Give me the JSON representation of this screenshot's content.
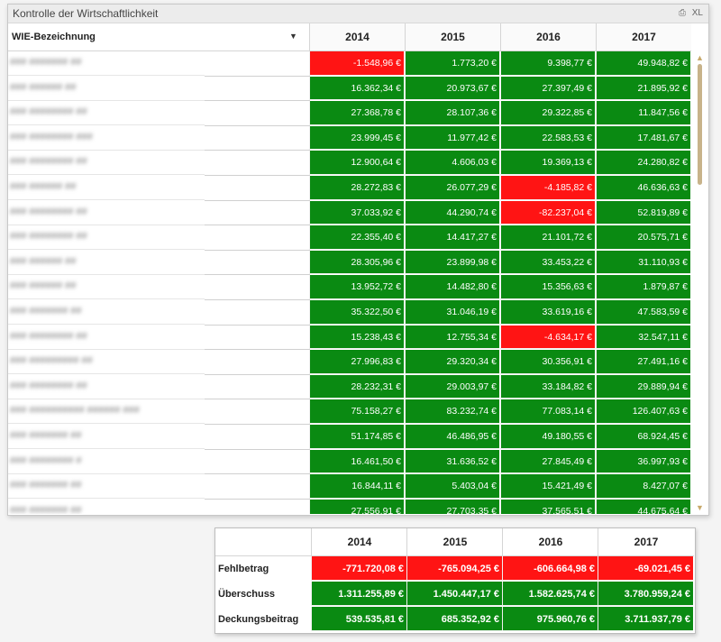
{
  "main": {
    "title": "Kontrolle der Wirtschaftlichkeit",
    "icons": [
      "print-icon",
      "excel-export-icon"
    ],
    "icon_labels": [
      "⎙",
      "XL"
    ],
    "dimension_label": "WIE-Bezeichnung",
    "years": [
      "2014",
      "2015",
      "2016",
      "2017"
    ],
    "colors": {
      "positive": "#0a8a12",
      "negative": "#ff1414"
    },
    "rows": [
      {
        "label": "### ####### ##",
        "values": [
          "-1.548,96 €",
          "1.773,20 €",
          "9.398,77 €",
          "49.948,82 €"
        ],
        "neg": [
          true,
          false,
          false,
          false
        ]
      },
      {
        "label": "### ###### ##",
        "values": [
          "16.362,34 €",
          "20.973,67 €",
          "27.397,49 €",
          "21.895,92 €"
        ],
        "neg": [
          false,
          false,
          false,
          false
        ]
      },
      {
        "label": "### ######## ##",
        "values": [
          "27.368,78 €",
          "28.107,36 €",
          "29.322,85 €",
          "11.847,56 €"
        ],
        "neg": [
          false,
          false,
          false,
          false
        ]
      },
      {
        "label": "### ######## ###",
        "values": [
          "23.999,45 €",
          "11.977,42 €",
          "22.583,53 €",
          "17.481,67 €"
        ],
        "neg": [
          false,
          false,
          false,
          false
        ]
      },
      {
        "label": "### ######## ##",
        "values": [
          "12.900,64 €",
          "4.606,03 €",
          "19.369,13 €",
          "24.280,82 €"
        ],
        "neg": [
          false,
          false,
          false,
          false
        ]
      },
      {
        "label": "### ###### ##",
        "values": [
          "28.272,83 €",
          "26.077,29 €",
          "-4.185,82 €",
          "46.636,63 €"
        ],
        "neg": [
          false,
          false,
          true,
          false
        ]
      },
      {
        "label": "### ######## ##",
        "values": [
          "37.033,92 €",
          "44.290,74 €",
          "-82.237,04 €",
          "52.819,89 €"
        ],
        "neg": [
          false,
          false,
          true,
          false
        ]
      },
      {
        "label": "### ######## ##",
        "values": [
          "22.355,40 €",
          "14.417,27 €",
          "21.101,72 €",
          "20.575,71 €"
        ],
        "neg": [
          false,
          false,
          false,
          false
        ]
      },
      {
        "label": "### ###### ##",
        "values": [
          "28.305,96 €",
          "23.899,98 €",
          "33.453,22 €",
          "31.110,93 €"
        ],
        "neg": [
          false,
          false,
          false,
          false
        ]
      },
      {
        "label": "### ###### ##",
        "values": [
          "13.952,72 €",
          "14.482,80 €",
          "15.356,63 €",
          "1.879,87 €"
        ],
        "neg": [
          false,
          false,
          false,
          false
        ]
      },
      {
        "label": "### ####### ##",
        "values": [
          "35.322,50 €",
          "31.046,19 €",
          "33.619,16 €",
          "47.583,59 €"
        ],
        "neg": [
          false,
          false,
          false,
          false
        ]
      },
      {
        "label": "### ######## ##",
        "values": [
          "15.238,43 €",
          "12.755,34 €",
          "-4.634,17 €",
          "32.547,11 €"
        ],
        "neg": [
          false,
          false,
          true,
          false
        ]
      },
      {
        "label": "### ######### ##",
        "values": [
          "27.996,83 €",
          "29.320,34 €",
          "30.356,91 €",
          "27.491,16 €"
        ],
        "neg": [
          false,
          false,
          false,
          false
        ]
      },
      {
        "label": "### ######## ##",
        "values": [
          "28.232,31 €",
          "29.003,97 €",
          "33.184,82 €",
          "29.889,94 €"
        ],
        "neg": [
          false,
          false,
          false,
          false
        ]
      },
      {
        "label": "### ########## ###### ###",
        "values": [
          "75.158,27 €",
          "83.232,74 €",
          "77.083,14 €",
          "126.407,63 €"
        ],
        "neg": [
          false,
          false,
          false,
          false
        ]
      },
      {
        "label": "### ####### ##",
        "values": [
          "51.174,85 €",
          "46.486,95 €",
          "49.180,55 €",
          "68.924,45 €"
        ],
        "neg": [
          false,
          false,
          false,
          false
        ]
      },
      {
        "label": "### ######## #",
        "values": [
          "16.461,50 €",
          "31.636,52 €",
          "27.845,49 €",
          "36.997,93 €"
        ],
        "neg": [
          false,
          false,
          false,
          false
        ]
      },
      {
        "label": "### ####### ##",
        "values": [
          "16.844,11 €",
          "5.403,04 €",
          "15.421,49 €",
          "8.427,07 €"
        ],
        "neg": [
          false,
          false,
          false,
          false
        ]
      },
      {
        "label": "### ####### ##",
        "values": [
          "27.556,91 €",
          "27.703,35 €",
          "37.565,51 €",
          "44.675,64 €"
        ],
        "neg": [
          false,
          false,
          false,
          false
        ]
      }
    ]
  },
  "summary": {
    "years": [
      "2014",
      "2015",
      "2016",
      "2017"
    ],
    "rows": [
      {
        "label": "Fehlbetrag",
        "values": [
          "-771.720,08 €",
          "-765.094,25 €",
          "-606.664,98 €",
          "-69.021,45 €"
        ],
        "neg": [
          true,
          true,
          true,
          true
        ]
      },
      {
        "label": "Überschuss",
        "values": [
          "1.311.255,89 €",
          "1.450.447,17 €",
          "1.582.625,74 €",
          "3.780.959,24 €"
        ],
        "neg": [
          false,
          false,
          false,
          false
        ]
      },
      {
        "label": "Deckungsbeitrag",
        "values": [
          "539.535,81 €",
          "685.352,92 €",
          "975.960,76 €",
          "3.711.937,79 €"
        ],
        "neg": [
          false,
          false,
          false,
          false
        ]
      }
    ]
  }
}
